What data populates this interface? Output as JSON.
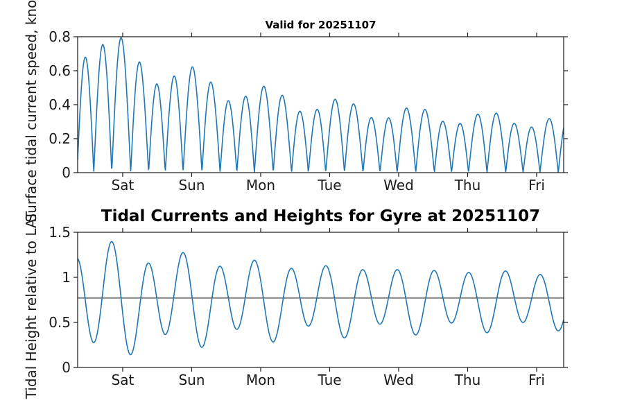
{
  "figure": {
    "background": "#ffffff",
    "axis_color": "#1a1a1a",
    "tick_label_color": "#1a1a1a"
  },
  "chart_data": [
    {
      "id": "surface-current-speed",
      "type": "line",
      "title": "Valid for 20251107",
      "ylabel": "Surface tidal current speed, knots",
      "line_color": "#1f77b4",
      "ylim": [
        0,
        0.8
      ],
      "ytick_values": [
        0,
        0.2,
        0.4,
        0.6,
        0.8
      ],
      "ytick_labels": [
        "0",
        "0.2",
        "0.4",
        "0.6",
        "0.8"
      ],
      "xtick_labels": [
        "Sat",
        "Sun",
        "Mon",
        "Tue",
        "Wed",
        "Thu",
        "Fri"
      ],
      "xticks_days": [
        0.653,
        1.653,
        2.653,
        3.653,
        4.653,
        5.653,
        6.653
      ],
      "x_range_days": [
        0,
        7.045
      ],
      "grid": false,
      "legend": null,
      "peak_speeds_read_knots": [
        0.6,
        0.69,
        0.79,
        0.66,
        0.54,
        0.62,
        0.7,
        0.57,
        0.45,
        0.52,
        0.59,
        0.48,
        0.36,
        0.42,
        0.48,
        0.39,
        0.3,
        0.33,
        0.38,
        0.34,
        0.27,
        0.29,
        0.34,
        0.32,
        0.3,
        0.3,
        0.34
      ],
      "model": {
        "kind": "speed",
        "m2": {
          "period": 0.5175,
          "t_max": 0.502,
          "amp_base": 0.27,
          "amp_scale": 0.55,
          "amp_tau": 2.4
        },
        "k1": {
          "period": 1.0027,
          "t_max": 0.387,
          "amp_base": 0.035,
          "amp_scale": 0.085,
          "amp_tau": 2.5
        }
      }
    },
    {
      "id": "tidal-height",
      "type": "line",
      "title": "Tidal Currents and Heights for Gyre at 20251107",
      "ylabel": "Tidal Height relative to LAT",
      "line_color": "#1f77b4",
      "ylim": [
        0,
        1.5
      ],
      "ytick_values": [
        0,
        0.5,
        1,
        1.5
      ],
      "ytick_labels": [
        "0",
        "0.5",
        "1",
        "1.5"
      ],
      "xtick_labels": [
        "Sat",
        "Sun",
        "Mon",
        "Tue",
        "Wed",
        "Thu",
        "Fri"
      ],
      "xticks_days": [
        0.653,
        1.653,
        2.653,
        3.653,
        4.653,
        5.653,
        6.653
      ],
      "x_range_days": [
        0,
        7.045
      ],
      "grid": false,
      "legend": null,
      "ref_line": {
        "value": 0.77,
        "color": "#3d3d3d"
      },
      "high_tides_read": [
        1.45,
        1.15,
        1.39,
        1.08,
        1.3,
        1.02,
        1.21,
        0.99,
        1.11,
        1.0,
        1.05,
        1.04,
        1.05
      ],
      "low_tides_read": [
        0.36,
        0.03,
        0.42,
        0.1,
        0.47,
        0.2,
        0.55,
        0.3,
        0.59,
        0.39,
        0.63,
        0.44,
        0.57
      ],
      "model": {
        "kind": "height",
        "mean": 0.75,
        "m2": {
          "period": 0.5175,
          "t_max": 0.502,
          "amp_base": 0.27,
          "amp_scale": 0.32,
          "amp_tau": 2.8
        },
        "k1": {
          "period": 1.0027,
          "t_max": 0.387,
          "amp_base": 0.04,
          "amp_scale": 0.12,
          "amp_tau": 3.0
        }
      }
    }
  ]
}
